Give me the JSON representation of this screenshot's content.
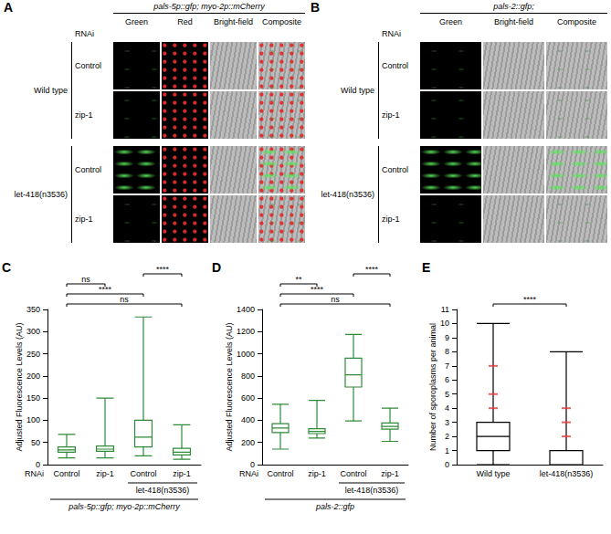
{
  "panels": [
    {
      "letter": "A",
      "strain": "pals-5p::gfp; myo-2p::mCherry",
      "rnai_label": "RNAi",
      "columns": [
        "Green",
        "Red",
        "Bright-field",
        "Composite"
      ],
      "groups": [
        {
          "label": "Wild type",
          "rows": [
            "Control",
            "zip-1"
          ]
        },
        {
          "label": "let-418(n3536)",
          "rows": [
            "Control",
            "zip-1"
          ]
        }
      ],
      "gfp_high": [
        [
          false,
          false
        ],
        [
          true,
          false
        ]
      ]
    },
    {
      "letter": "B",
      "strain": "pals-2::gfp;",
      "rnai_label": "RNAi",
      "columns": [
        "Green",
        "Bright-field",
        "Composite"
      ],
      "groups": [
        {
          "label": "Wild type",
          "rows": [
            "Control",
            "zip-1"
          ]
        },
        {
          "label": "let-418(n3536)",
          "rows": [
            "Control",
            "zip-1"
          ]
        }
      ],
      "gfp_high": [
        [
          false,
          false
        ],
        [
          true,
          false
        ]
      ]
    }
  ],
  "chart_data": [
    {
      "type": "boxplot",
      "letter": "C",
      "y_label": "Adjusted Fluorescence Levels (AU)",
      "categories": [
        "Control",
        "zip-1",
        "Control",
        "zip-1"
      ],
      "values": [
        [
          15,
          28,
          33,
          40,
          68
        ],
        [
          15,
          30,
          35,
          42,
          150
        ],
        [
          20,
          40,
          62,
          100,
          333
        ],
        [
          12,
          22,
          28,
          37,
          90
        ]
      ],
      "color": "#2e8b3a",
      "ylim": [
        0,
        350
      ],
      "yticks": [
        0,
        50,
        100,
        150,
        200,
        250,
        300,
        350
      ],
      "grid": false,
      "x_label": "RNAi",
      "group_label": {
        "text": "let-418(n3536)",
        "from": 2,
        "to": 3
      },
      "strain_label": "pals-5p::gfp; myo-2p::mCherry",
      "significance": [
        {
          "from": 0,
          "to": 3,
          "label": "ns"
        },
        {
          "from": 0,
          "to": 2,
          "label": "****"
        },
        {
          "from": 0,
          "to": 1,
          "label": "ns"
        },
        {
          "from": 2,
          "to": 3,
          "label": "****"
        }
      ]
    },
    {
      "type": "boxplot",
      "letter": "D",
      "y_label": "Adjusted Fluorescence Levels (AU)",
      "categories": [
        "Control",
        "zip-1",
        "Control",
        "zip-1"
      ],
      "values": [
        [
          140,
          290,
          330,
          370,
          545
        ],
        [
          240,
          280,
          300,
          325,
          580
        ],
        [
          395,
          700,
          810,
          960,
          1175
        ],
        [
          210,
          320,
          345,
          375,
          510
        ]
      ],
      "color": "#2e8b3a",
      "ylim": [
        0,
        1400
      ],
      "yticks": [
        0,
        200,
        400,
        600,
        800,
        1000,
        1200,
        1400
      ],
      "grid": false,
      "x_label": "RNAi",
      "group_label": {
        "text": "let-418(n3536)",
        "from": 2,
        "to": 3
      },
      "strain_label": "pals-2::gfp",
      "significance": [
        {
          "from": 0,
          "to": 3,
          "label": "ns"
        },
        {
          "from": 0,
          "to": 2,
          "label": "****"
        },
        {
          "from": 0,
          "to": 1,
          "label": "**"
        },
        {
          "from": 2,
          "to": 3,
          "label": "****"
        }
      ]
    },
    {
      "type": "boxplot",
      "letter": "E",
      "y_label": "Number of sporoplasms per animal",
      "categories": [
        "Wild type",
        "let-418(n3536)"
      ],
      "values": [
        [
          0,
          1,
          2,
          3,
          10
        ],
        [
          0,
          0,
          0,
          1,
          8
        ]
      ],
      "color": "#000000",
      "ylim": [
        0,
        11
      ],
      "yticks": [
        0,
        1,
        2,
        3,
        4,
        5,
        6,
        7,
        8,
        9,
        10,
        11
      ],
      "grid": false,
      "outliers": {
        "values": [
          [
            4,
            5,
            7
          ],
          [
            2,
            3,
            4
          ]
        ],
        "color": "#e53935",
        "marker": "dash"
      },
      "significance": [
        {
          "from": 0,
          "to": 1,
          "label": "****"
        }
      ]
    }
  ]
}
